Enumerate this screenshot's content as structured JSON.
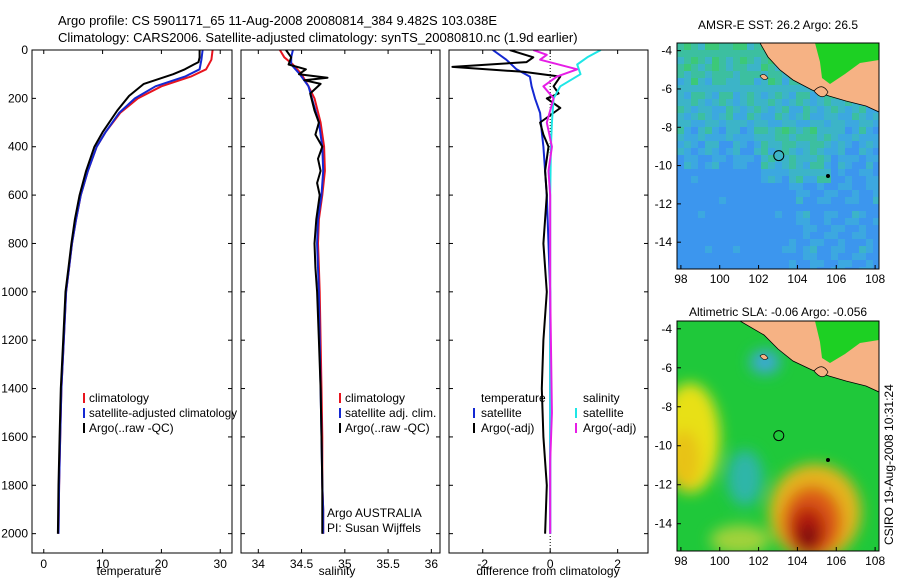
{
  "title_line1": "Argo profile: CS 5901171_65 11-Aug-2008 20080814_384 9.482S 103.038E",
  "title_line2": "Climatology: CARS2006. Satellite-adjusted climatology: synTS_20080810.nc (1.9d earlier)",
  "side_label": "CSIRO 19-Aug-2008 10:31:24",
  "colors": {
    "red": "#e8141e",
    "blue": "#1428d2",
    "black": "#000000",
    "cyan": "#1ee6e6",
    "magenta": "#e61ee6"
  },
  "chart_data": [
    {
      "type": "line",
      "name": "temperature",
      "xlabel": "temperature",
      "ylabel": "",
      "xlim": [
        -2,
        32
      ],
      "ylim": [
        2080,
        0
      ],
      "xticks": [
        0,
        10,
        20,
        30
      ],
      "yticks": [
        0,
        200,
        400,
        600,
        800,
        1000,
        1200,
        1400,
        1600,
        1800,
        2000
      ],
      "legend": {
        "location": "bottom-right",
        "entries": [
          "climatology",
          "satellite-adjusted climatology",
          "Argo(..raw -QC)"
        ]
      },
      "series": [
        {
          "name": "climatology",
          "color": "red",
          "x": [
            28.7,
            28.5,
            27.6,
            25,
            20,
            16,
            13,
            10.5,
            9,
            7.5,
            6.3,
            5.5,
            4.8,
            4.3,
            3.8,
            3.4,
            3.2,
            3.0,
            2.8,
            2.6,
            2.5
          ],
          "y": [
            0,
            40,
            80,
            110,
            150,
            200,
            260,
            340,
            400,
            500,
            600,
            700,
            800,
            900,
            1000,
            1200,
            1300,
            1400,
            1600,
            1800,
            2000
          ]
        },
        {
          "name": "satellite-adjusted climatology",
          "color": "blue",
          "x": [
            27.0,
            26.8,
            26.5,
            24,
            19,
            15.5,
            12.8,
            10.5,
            9,
            7.5,
            6.3,
            5.5,
            4.8,
            4.3,
            3.8,
            3.4,
            3.2,
            3.0,
            2.8,
            2.6,
            2.5
          ],
          "y": [
            0,
            40,
            80,
            110,
            150,
            200,
            260,
            340,
            400,
            500,
            600,
            700,
            800,
            900,
            1000,
            1200,
            1300,
            1400,
            1600,
            1800,
            2000
          ]
        },
        {
          "name": "Argo(..raw -QC)",
          "color": "black",
          "x": [
            26.5,
            26.5,
            26.3,
            25.5,
            24,
            22,
            17,
            14.5,
            12.5,
            10,
            8.6,
            7.2,
            6.1,
            5.3,
            4.7,
            4.2,
            3.7,
            3.3,
            3.1,
            2.9,
            2.7,
            2.5,
            2.4
          ],
          "y": [
            0,
            30,
            50,
            60,
            80,
            100,
            140,
            190,
            250,
            340,
            400,
            500,
            600,
            700,
            800,
            900,
            1000,
            1200,
            1300,
            1400,
            1600,
            1800,
            2000
          ]
        }
      ]
    },
    {
      "type": "line",
      "name": "salinity",
      "xlabel": "salinity",
      "xlim": [
        33.8,
        36.1
      ],
      "ylim": [
        2080,
        0
      ],
      "xticks": [
        34,
        34.5,
        35,
        35.5,
        36
      ],
      "legend": {
        "location": "bottom-right",
        "entries": [
          "climatology",
          "satellite adj. clim.",
          "Argo(..raw -QC)"
        ]
      },
      "annotation": [
        "Argo AUSTRALIA",
        "PI: Susan Wijffels"
      ],
      "series": [
        {
          "name": "climatology",
          "color": "red",
          "x": [
            34.25,
            34.3,
            34.4,
            34.5,
            34.58,
            34.65,
            34.72,
            34.76,
            34.77,
            34.74,
            34.7,
            34.69,
            34.7,
            34.71,
            34.72,
            34.73,
            34.74,
            34.74,
            34.75,
            34.75
          ],
          "y": [
            0,
            30,
            60,
            100,
            150,
            200,
            300,
            400,
            500,
            600,
            700,
            800,
            900,
            1000,
            1200,
            1400,
            1600,
            1800,
            1900,
            2000
          ]
        },
        {
          "name": "satellite adj. clim.",
          "color": "blue",
          "x": [
            34.4,
            34.38,
            34.38,
            34.48,
            34.58,
            34.62,
            34.7,
            34.74,
            34.75,
            34.73,
            34.69,
            34.68,
            34.69,
            34.7,
            34.71,
            34.72,
            34.73,
            34.74,
            34.75,
            34.75
          ],
          "y": [
            0,
            30,
            60,
            100,
            150,
            200,
            300,
            400,
            500,
            600,
            700,
            800,
            900,
            1000,
            1200,
            1400,
            1600,
            1800,
            1900,
            2000
          ]
        },
        {
          "name": "Argo(..raw -QC)",
          "color": "black",
          "x": [
            34.32,
            34.38,
            34.35,
            34.55,
            34.47,
            34.8,
            34.53,
            34.72,
            34.6,
            34.65,
            34.7,
            34.66,
            34.74,
            34.69,
            34.72,
            34.68,
            34.71,
            34.67,
            34.65,
            34.66,
            34.68,
            34.7,
            34.72,
            34.73,
            34.74,
            34.74
          ],
          "y": [
            0,
            30,
            60,
            80,
            100,
            115,
            125,
            140,
            180,
            250,
            300,
            350,
            400,
            450,
            500,
            550,
            600,
            700,
            800,
            900,
            1000,
            1200,
            1400,
            1600,
            1800,
            2000
          ]
        }
      ]
    },
    {
      "type": "line",
      "name": "difference",
      "xlabel": "difference from climatology",
      "xlim": [
        -3.0,
        2.9
      ],
      "ylim": [
        2080,
        0
      ],
      "xticks": [
        -2,
        0,
        2
      ],
      "legend": {
        "location": "bottom",
        "temperature_title": "temperature",
        "salinity_title": "salinity",
        "entries": [
          "satellite",
          "Argo(-adj)",
          "satellite",
          "Argo(-adj)"
        ]
      },
      "series": [
        {
          "name": "temperature satellite",
          "color": "blue",
          "x": [
            -1.7,
            -1.3,
            -1.0,
            -0.6,
            -0.55,
            -0.45,
            -0.3,
            -0.25,
            -0.2,
            -0.15,
            -0.1,
            -0.05,
            0,
            0,
            0
          ],
          "y": [
            0,
            40,
            80,
            110,
            150,
            200,
            260,
            340,
            400,
            500,
            600,
            800,
            1000,
            1500,
            2000
          ]
        },
        {
          "name": "temperature Argo(-adj)",
          "color": "black",
          "x": [
            -1.2,
            -0.5,
            -0.7,
            -2.9,
            -0.8,
            0.3,
            0.1,
            0.25,
            -0.1,
            0.3,
            -0.3,
            -0.2,
            -0.05,
            -0.15,
            -0.1,
            -0.2,
            -0.1,
            -0.2,
            -0.25,
            -0.2,
            -0.1,
            -0.15
          ],
          "y": [
            0,
            30,
            50,
            70,
            90,
            110,
            150,
            180,
            200,
            240,
            300,
            350,
            400,
            500,
            600,
            800,
            1000,
            1200,
            1400,
            1600,
            1800,
            2000
          ]
        },
        {
          "name": "salinity satellite",
          "color": "cyan",
          "x": [
            1.5,
            1.1,
            0.8,
            0.9,
            0.3,
            0.1,
            0.05,
            0.02,
            0,
            0,
            0,
            0
          ],
          "y": [
            0,
            30,
            60,
            100,
            150,
            200,
            300,
            400,
            600,
            1000,
            1500,
            2000
          ]
        },
        {
          "name": "salinity Argo(-adj)",
          "color": "magenta",
          "x": [
            -0.5,
            -0.1,
            -0.3,
            0.8,
            0.2,
            -0.2,
            0.1,
            -0.1,
            0.05,
            -0.05,
            0,
            0,
            0.05,
            0,
            0
          ],
          "y": [
            0,
            20,
            40,
            80,
            110,
            150,
            200,
            300,
            400,
            500,
            600,
            1000,
            1500,
            1700,
            2000
          ]
        }
      ]
    },
    {
      "type": "heatmap",
      "name": "sst-map",
      "title": "AMSR-E SST: 26.2 Argo: 26.5",
      "xlim": [
        97.8,
        108.2
      ],
      "ylim": [
        -15.4,
        -3.6
      ],
      "xticks": [
        98,
        100,
        102,
        104,
        106,
        108
      ],
      "yticks": [
        -4,
        -6,
        -8,
        -10,
        -12,
        -14
      ],
      "marker": {
        "lon": 103.04,
        "lat": -9.48
      }
    },
    {
      "type": "heatmap",
      "name": "sla-map",
      "title": "Altimetric SLA: -0.06 Argo: -0.056",
      "xlim": [
        97.8,
        108.2
      ],
      "ylim": [
        -15.4,
        -3.6
      ],
      "xticks": [
        98,
        100,
        102,
        104,
        106,
        108
      ],
      "yticks": [
        -4,
        -6,
        -8,
        -10,
        -12,
        -14
      ],
      "marker": {
        "lon": 103.04,
        "lat": -9.48
      }
    }
  ]
}
